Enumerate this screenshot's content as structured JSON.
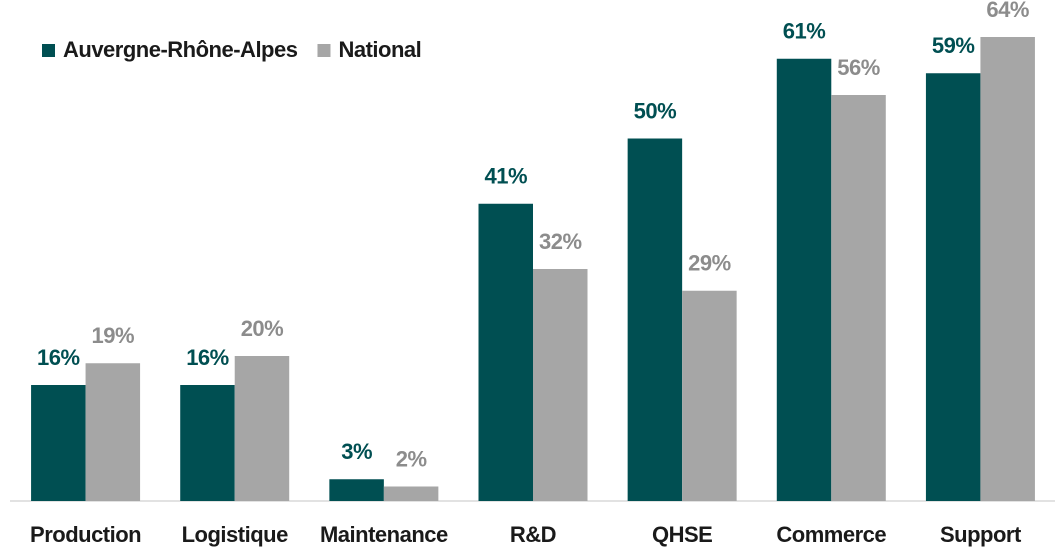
{
  "chart_data": {
    "type": "bar",
    "categories": [
      "Production",
      "Logistique",
      "Maintenance",
      "R&D",
      "QHSE",
      "Commerce",
      "Support"
    ],
    "series": [
      {
        "name": "Auvergne-Rhône-Alpes",
        "color": "#004f52",
        "values": [
          16,
          16,
          3,
          41,
          50,
          61,
          59
        ],
        "value_labels": [
          "16%",
          "16%",
          "3%",
          "41%",
          "50%",
          "61%",
          "59%"
        ]
      },
      {
        "name": "National",
        "color": "#a6a6a6",
        "values": [
          19,
          20,
          2,
          32,
          29,
          56,
          64
        ],
        "value_labels": [
          "19%",
          "20%",
          "2%",
          "32%",
          "29%",
          "56%",
          "64%"
        ]
      }
    ],
    "legend": "top-left"
  }
}
